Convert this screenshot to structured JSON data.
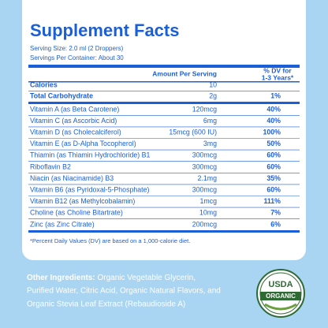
{
  "header": {
    "title": "Supplement Facts",
    "serving_size": "Serving Size: 2.0 ml (2 Droppers)",
    "servings_per_container": "Servings Per Container: About 30"
  },
  "columns": {
    "amount": "Amount Per Serving",
    "dv": [
      "% DV for",
      "1-3 Years*"
    ]
  },
  "rows": [
    [
      "Calories",
      "10"
    ],
    [
      "Total Carbohydrate",
      "2g",
      "1%"
    ],
    [
      "Vitamin A (as Beta Carotene)",
      "120mcg",
      "40%"
    ],
    [
      "Vitamin C (as Ascorbic Acid)",
      "6mg",
      "40%"
    ],
    [
      "Vitamin D (as Cholecalciferol)",
      "15mcg (600 IU)",
      "100%"
    ],
    [
      "Vitamin E (as D-Alpha Tocopherol)",
      "3mg",
      "50%"
    ],
    [
      "Thiamin (as Thiamin Hydrochloride) B1",
      "300mcg",
      "60%"
    ],
    [
      "Riboflavin B2",
      "300mcg",
      "60%"
    ],
    [
      "Niacin (as Niacinamide) B3",
      "2.1mg",
      "35%"
    ],
    [
      "Vitamin B6 (as Pyridoxal-5-Phosphate)",
      "300mcg",
      "60%"
    ],
    [
      "Vitamin B12 (as Methylcobalamin)",
      "1mcg",
      "111%"
    ],
    [
      "Choline (as Choline Bitartrate)",
      "10mg",
      "7%"
    ],
    [
      "Zinc (as Zinc Citrate)",
      "200mcg",
      "6%"
    ]
  ],
  "footnote": "*Percent Daily Values (DV) are based on a 1,000-calorie diet.",
  "ingredients": {
    "label": "Other Ingredients:",
    "lines": [
      " Organic Vegetable Glycerin,",
      "Purified Water, Citric Acid, Organic Natural Flavors, and",
      "Organic Stevia Leaf Extract (Rebaudioside A)"
    ]
  },
  "seal": {
    "top": "USDA",
    "bottom": "ORGANIC"
  }
}
